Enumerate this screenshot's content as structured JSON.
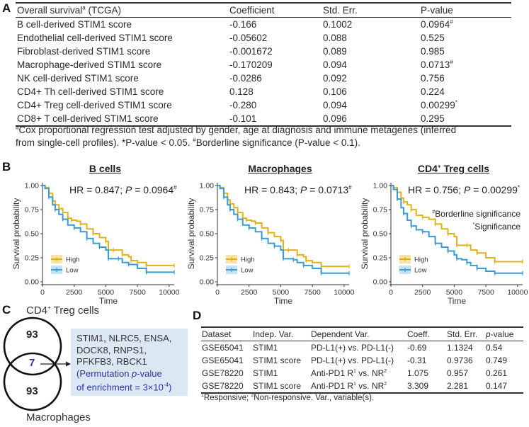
{
  "panels": {
    "a": "A",
    "b": "B",
    "c": "C",
    "d": "D"
  },
  "table_a": {
    "headers": [
      "Overall survival",
      "a",
      " (TCGA)",
      "Coefficient",
      "Std. Err.",
      "P-value"
    ],
    "rows": [
      {
        "label": "B cell-derived STIM1 score",
        "coef": "-0.166",
        "se": "0.1002",
        "p": "0.0964",
        "mark": "#"
      },
      {
        "label": "Endothelial cell-derived STIM1 score",
        "coef": "-0.05602",
        "se": "0.088",
        "p": "0.525",
        "mark": ""
      },
      {
        "label": "Fibroblast-derived STIM1 score",
        "coef": "-0.001672",
        "se": "0.089",
        "p": "0.985",
        "mark": ""
      },
      {
        "label": "Macrophage-derived STIM1 score",
        "coef": "-0.170209",
        "se": "0.094",
        "p": "0.0713",
        "mark": "#"
      },
      {
        "label": "NK cell-derived STIM1 score",
        "coef": "-0.0286",
        "se": "0.092",
        "p": "0.756",
        "mark": ""
      },
      {
        "label": "CD4+ Th cell-derived STIM1 score",
        "coef": "0.128",
        "se": "0.106",
        "p": "0.224",
        "mark": ""
      },
      {
        "label": "CD4+ Treg cell-derived STIM1 score",
        "coef": "-0.280",
        "se": "0.094",
        "p": "0.00299",
        "mark": "*"
      },
      {
        "label": "CD8+ T cell-derived STIM1 score",
        "coef": "-0.101",
        "se": "0.096",
        "p": "0.295",
        "mark": ""
      }
    ],
    "footnote_mark": "a",
    "footnote_1": "Cox proportional regression test adjusted by gender, age at diagnosis and immune metagenes (inferred",
    "footnote_2a": "from single-cell profiles). *P-value < 0.05. ",
    "footnote_2mark": "#",
    "footnote_2b": "Borderline significance (P-value < 0.1)."
  },
  "chart_data": [
    {
      "type": "line",
      "title": "B cells",
      "annotation": {
        "hr_prefix": "HR = 0.847; ",
        "p_label": "P",
        "p_value": " = 0.0964",
        "mark": "#"
      },
      "xlabel": "Time",
      "ylabel": "Survival probability",
      "xlim": [
        0,
        10400
      ],
      "ylim": [
        0,
        1
      ],
      "xticks": [
        "0",
        "2500",
        "5000",
        "7500",
        "10000"
      ],
      "yticks": [
        "0.00",
        "0.25",
        "0.50",
        "0.75",
        "1.00"
      ],
      "legend": [
        "High",
        "Low"
      ],
      "legend_position": "bottom-left",
      "series": [
        {
          "name": "High",
          "color": "#e0b11a",
          "x": [
            0,
            200,
            500,
            800,
            1000,
            1300,
            1600,
            2000,
            2300,
            2700,
            3000,
            3500,
            4000,
            4500,
            5000,
            5200,
            5600,
            6000,
            6300,
            6800,
            7000,
            7500,
            8200,
            9000,
            10400
          ],
          "y": [
            1.0,
            0.98,
            0.92,
            0.84,
            0.8,
            0.76,
            0.72,
            0.66,
            0.64,
            0.63,
            0.6,
            0.55,
            0.5,
            0.46,
            0.42,
            0.33,
            0.33,
            0.33,
            0.28,
            0.26,
            0.22,
            0.2,
            0.17,
            0.17,
            0.17
          ]
        },
        {
          "name": "Low",
          "color": "#3a9ad4",
          "x": [
            0,
            200,
            500,
            800,
            1000,
            1300,
            1600,
            2000,
            2500,
            3000,
            3500,
            4000,
            4500,
            5000,
            5200,
            5600,
            6000,
            6300,
            6800,
            7500,
            8200,
            9000,
            10400
          ],
          "y": [
            1.0,
            0.97,
            0.88,
            0.8,
            0.75,
            0.7,
            0.65,
            0.59,
            0.56,
            0.52,
            0.45,
            0.4,
            0.36,
            0.33,
            0.24,
            0.24,
            0.24,
            0.2,
            0.18,
            0.14,
            0.1,
            0.1,
            0.1
          ]
        }
      ]
    },
    {
      "type": "line",
      "title": "Macrophages",
      "annotation": {
        "hr_prefix": "HR = 0.843; ",
        "p_label": "P",
        "p_value": " = 0.0713",
        "mark": "#"
      },
      "xlabel": "Time",
      "ylabel": "Survival probability",
      "xlim": [
        0,
        10400
      ],
      "ylim": [
        0,
        1
      ],
      "xticks": [
        "0",
        "2500",
        "5000",
        "7500",
        "10000"
      ],
      "yticks": [
        "0.00",
        "0.25",
        "0.50",
        "0.75",
        "1.00"
      ],
      "legend": [
        "High",
        "Low"
      ],
      "legend_position": "bottom-left",
      "series": [
        {
          "name": "High",
          "color": "#e0b11a",
          "x": [
            0,
            200,
            500,
            800,
            1000,
            1300,
            1600,
            2000,
            2300,
            2700,
            3000,
            3500,
            4000,
            4500,
            5000,
            5200,
            5600,
            6000,
            6300,
            6800,
            7000,
            7500,
            8200,
            9000,
            10400
          ],
          "y": [
            1.0,
            0.98,
            0.92,
            0.85,
            0.81,
            0.77,
            0.72,
            0.66,
            0.64,
            0.63,
            0.61,
            0.56,
            0.51,
            0.47,
            0.43,
            0.33,
            0.33,
            0.33,
            0.28,
            0.26,
            0.22,
            0.2,
            0.16,
            0.16,
            0.16
          ]
        },
        {
          "name": "Low",
          "color": "#3a9ad4",
          "x": [
            0,
            200,
            500,
            800,
            1000,
            1300,
            1600,
            2000,
            2500,
            3000,
            3500,
            4000,
            4500,
            5000,
            5200,
            5600,
            6000,
            6300,
            6800,
            7500,
            8200,
            9000,
            10400
          ],
          "y": [
            1.0,
            0.97,
            0.88,
            0.8,
            0.75,
            0.7,
            0.65,
            0.59,
            0.56,
            0.52,
            0.45,
            0.4,
            0.37,
            0.33,
            0.24,
            0.24,
            0.23,
            0.2,
            0.17,
            0.14,
            0.09,
            0.09,
            0.09
          ]
        }
      ]
    },
    {
      "type": "line",
      "title": "CD4",
      "title_sup": "+",
      "title_suffix": " Treg cells",
      "annotation": {
        "hr_prefix": "HR = 0.756; ",
        "p_label": "P",
        "p_value": " = 0.00299",
        "mark": "*"
      },
      "notes": [
        {
          "mark": "#",
          "text": "Borderline significance"
        },
        {
          "mark": "*",
          "text": "Significance"
        }
      ],
      "xlabel": "Time",
      "ylabel": "Survival probability",
      "xlim": [
        0,
        10400
      ],
      "ylim": [
        0,
        1
      ],
      "xticks": [
        "0",
        "2500",
        "5000",
        "7500",
        "10000"
      ],
      "yticks": [
        "0.00",
        "0.25",
        "0.50",
        "0.75",
        "1.00"
      ],
      "legend": [
        "High",
        "Low"
      ],
      "legend_position": "bottom-left",
      "series": [
        {
          "name": "High",
          "color": "#e0b11a",
          "x": [
            0,
            200,
            500,
            800,
            1000,
            1300,
            1600,
            2000,
            2500,
            3000,
            3500,
            4000,
            4500,
            5000,
            5200,
            5600,
            6000,
            6300,
            6800,
            7500,
            8200,
            9000,
            10400
          ],
          "y": [
            1.0,
            0.98,
            0.93,
            0.87,
            0.83,
            0.8,
            0.75,
            0.69,
            0.67,
            0.65,
            0.6,
            0.55,
            0.5,
            0.47,
            0.38,
            0.38,
            0.38,
            0.33,
            0.3,
            0.25,
            0.21,
            0.21,
            0.21
          ]
        },
        {
          "name": "Low",
          "color": "#3a9ad4",
          "x": [
            0,
            200,
            500,
            800,
            1000,
            1300,
            1600,
            2000,
            2500,
            3000,
            3500,
            4000,
            4500,
            5000,
            5200,
            5600,
            6000,
            6300,
            6800,
            7500,
            8200,
            9000,
            10400
          ],
          "y": [
            1.0,
            0.96,
            0.86,
            0.77,
            0.71,
            0.64,
            0.58,
            0.54,
            0.52,
            0.47,
            0.4,
            0.36,
            0.32,
            0.28,
            0.24,
            0.23,
            0.2,
            0.17,
            0.14,
            0.11,
            0.09,
            0.09,
            0.09
          ]
        }
      ]
    }
  ],
  "venn": {
    "top_label": "CD4",
    "top_label_sup": "+",
    "top_label_suffix": " Treg cells",
    "bottom_label": "Macrophages",
    "top_only": "93",
    "overlap": "7",
    "bottom_only": "93",
    "genes_line1": "STIM1, NLRC5, ENSA,",
    "genes_line2": "DOCK8, RNPS1,",
    "genes_line3": "PFKFB3, RBCK1",
    "perm_line1_a": "(Permutation ",
    "perm_line1_p": "p",
    "perm_line1_b": "-value",
    "perm_line2_a": "of enrichment = 3×10",
    "perm_line2_exp": "-4",
    "perm_line2_b": ")"
  },
  "table_d": {
    "headers": [
      "Dataset",
      "Indep. Var.",
      "Dependent Var.",
      "Coeff.",
      "Std. Err.",
      "p",
      "-value"
    ],
    "rows": [
      {
        "dataset": "GSE65041",
        "indep": "STIM1",
        "dep": "PD-L1(+) vs. PD-L1(-)",
        "dep_sup1": "",
        "dep_mid": "",
        "dep_sup2": "",
        "coef": "-0.69",
        "se": "1.1324",
        "p": "0.54"
      },
      {
        "dataset": "GSE65041",
        "indep": "STIM1 score",
        "dep": "PD-L1(+) vs. PD-L1(-)",
        "dep_sup1": "",
        "dep_mid": "",
        "dep_sup2": "",
        "coef": "-0.31",
        "se": "0.9736",
        "p": "0.749"
      },
      {
        "dataset": "GSE78220",
        "indep": "STIM1",
        "dep": "Anti-PD1 R",
        "dep_sup1": "1",
        "dep_mid": " vs. NR",
        "dep_sup2": "2",
        "coef": "1.075",
        "se": "0.957",
        "p": "0.261"
      },
      {
        "dataset": "GSE78220",
        "indep": "STIM1 score",
        "dep": "Anti-PD1 R",
        "dep_sup1": "1",
        "dep_mid": " vs. NR",
        "dep_sup2": "2",
        "coef": "3.309",
        "se": "2.281",
        "p": "0.147"
      }
    ],
    "footnote_sup1": "1",
    "footnote_a": "Responsive; ",
    "footnote_sup2": "2",
    "footnote_b": "Non-responsive. Var., variable(s)."
  }
}
